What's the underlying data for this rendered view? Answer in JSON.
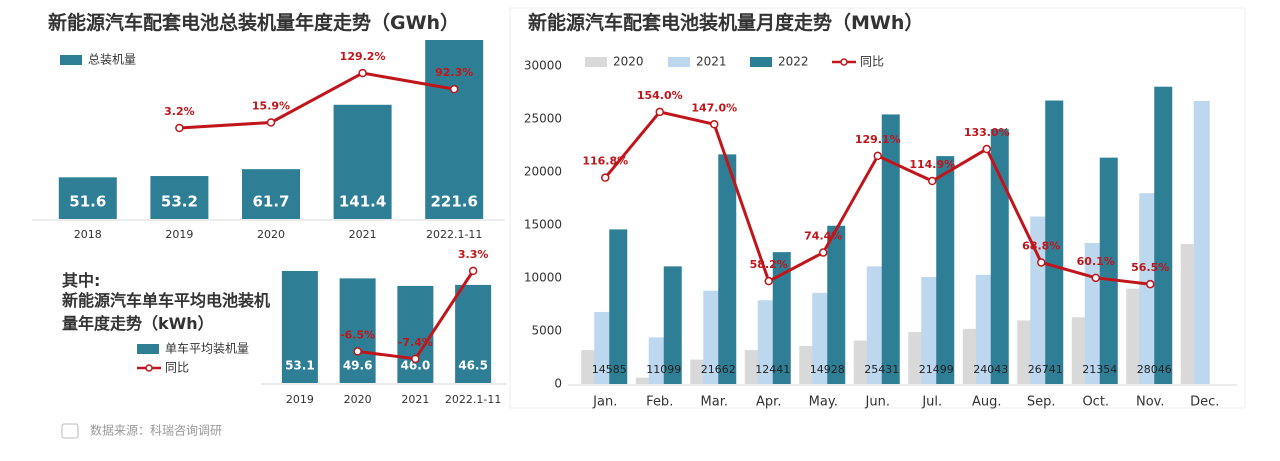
{
  "chart_data": [
    {
      "type": "bar",
      "title": "新能源汽车配套电池总装机量年度走势（GWh）",
      "categories": [
        "2018",
        "2019",
        "2020",
        "2021",
        "2022.1-11"
      ],
      "series": [
        {
          "name": "总装机量",
          "type": "bar",
          "color": "#2e7f96",
          "values": [
            51.6,
            53.2,
            61.7,
            141.4,
            221.6
          ]
        },
        {
          "type": "line",
          "color": "#c0161b",
          "values": [
            null,
            3.2,
            15.9,
            129.2,
            92.3
          ],
          "value_labels": [
            null,
            "3.2%",
            "15.9%",
            "129.2%",
            "92.3%"
          ]
        }
      ]
    },
    {
      "type": "bar",
      "subtitle": "其中:",
      "title": "新能源汽车单车平均电池装机量年度走势（kWh）",
      "categories": [
        "2019",
        "2020",
        "2021",
        "2022.1-11"
      ],
      "series": [
        {
          "name": "单车平均装机量",
          "type": "bar",
          "color": "#2e7f96",
          "values": [
            53.1,
            49.6,
            46.0,
            46.5
          ],
          "value_labels": [
            "53.1",
            "49.6",
            "46.0",
            "46.5"
          ]
        },
        {
          "name": "同比",
          "type": "line",
          "color": "#c0161b",
          "values": [
            null,
            -6.5,
            -7.4,
            3.3
          ],
          "value_labels": [
            null,
            "-6.5%",
            "-7.4%",
            "3.3%"
          ]
        }
      ]
    },
    {
      "type": "bar",
      "title": "新能源汽车配套电池装机量月度走势（MWh）",
      "categories": [
        "Jan.",
        "Feb.",
        "Mar.",
        "Apr.",
        "May.",
        "Jun.",
        "Jul.",
        "Aug.",
        "Sep.",
        "Oct.",
        "Nov.",
        "Dec."
      ],
      "ylim": [
        0,
        30000
      ],
      "yticks": [
        0,
        5000,
        10000,
        15000,
        20000,
        25000,
        30000
      ],
      "y2lim": [
        0,
        180
      ],
      "series": [
        {
          "name": "2020",
          "type": "bar",
          "color": "#d9d9d9",
          "values": [
            3200,
            600,
            2300,
            3200,
            3600,
            4100,
            4900,
            5200,
            6000,
            6300,
            9000,
            13200
          ]
        },
        {
          "name": "2021",
          "type": "bar",
          "color": "#bdd7ee",
          "values": [
            6800,
            4400,
            8800,
            7900,
            8600,
            11100,
            10100,
            10300,
            15800,
            13300,
            18000,
            26700
          ]
        },
        {
          "name": "2022",
          "type": "bar",
          "color": "#2e7f96",
          "values": [
            14585,
            11099,
            21662,
            12441,
            14928,
            25431,
            21499,
            24043,
            26741,
            21354,
            28046,
            null
          ]
        },
        {
          "name": "同比",
          "type": "line",
          "axis": "y2",
          "color": "#c0161b",
          "values": [
            116.8,
            154.0,
            147.0,
            58.2,
            74.4,
            129.1,
            114.9,
            133.0,
            68.8,
            60.1,
            56.5,
            null
          ],
          "value_labels": [
            "116.8%",
            "154.0%",
            "147.0%",
            "58.2%",
            "74.4%",
            "129.1%",
            "114.9%",
            "133.0%",
            "68.8%",
            "60.1%",
            "56.5%",
            null
          ]
        }
      ]
    },
    {
      "source": "数据来源：科瑞咨询调研"
    }
  ]
}
